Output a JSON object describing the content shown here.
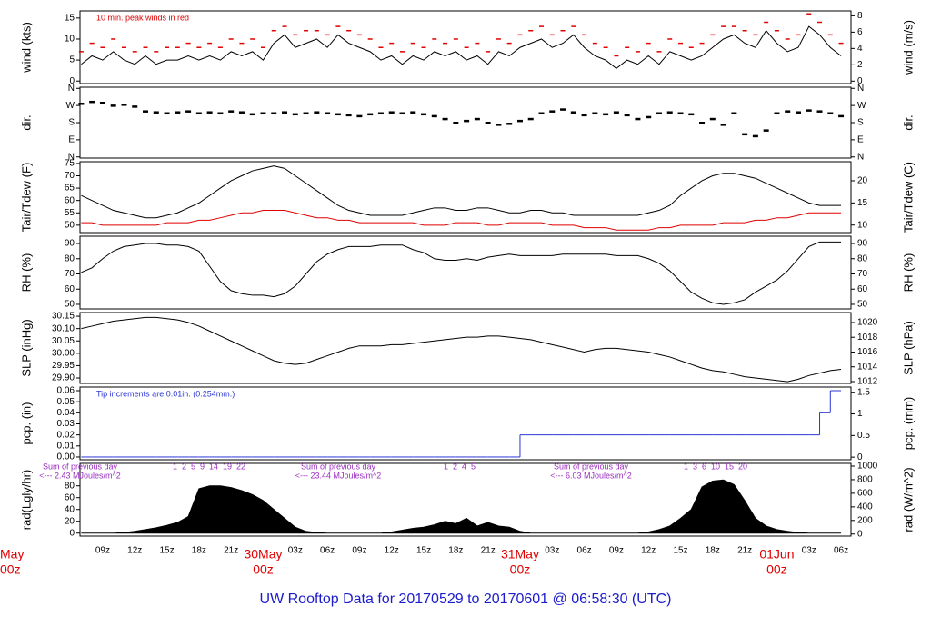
{
  "title": "UW Rooftop Data for 20170529  to  20170601 @ 06:58:30  (UTC)",
  "x_axis": {
    "categories": [
      {
        "day": "May",
        "hour": "00z"
      },
      null,
      null,
      null,
      null,
      null,
      null,
      null,
      null,
      "09z",
      null,
      null,
      "12z",
      null,
      null,
      "15z",
      null,
      null,
      "18z",
      null,
      null,
      "21z",
      null,
      null,
      {
        "day": "30May",
        "hour": "00z"
      },
      null,
      null,
      "03z",
      null,
      null,
      "06z",
      null,
      null,
      "09z",
      null,
      null,
      "12z",
      null,
      null,
      "15z",
      null,
      null,
      "18z",
      null,
      null,
      "21z",
      null,
      null,
      {
        "day": "31May",
        "hour": "00z"
      },
      null,
      null,
      "03z",
      null,
      null,
      "06z",
      null,
      null,
      "09z",
      null,
      null,
      "12z",
      null,
      null,
      "15z",
      null,
      null,
      "18z",
      null,
      null,
      "21z",
      null,
      null,
      {
        "day": "01Jun",
        "hour": "00z"
      },
      null,
      null,
      "03z",
      null,
      null,
      "06z"
    ]
  },
  "chart_data": [
    {
      "type": "line",
      "ylabel": "wind (kts)",
      "y2label": "wind (m/s)",
      "ylim": [
        -0.6,
        16.7
      ],
      "yticks": [
        0,
        5,
        10,
        15
      ],
      "y2lim": [
        -0.3,
        8.6
      ],
      "y2ticks": [
        0,
        2,
        4,
        6,
        8
      ],
      "annotation": "10 min. peak winds in red",
      "series": [
        {
          "name": "wind",
          "color": "#000000",
          "values": [
            null,
            null,
            null,
            null,
            null,
            null,
            null,
            4,
            6,
            5,
            7,
            5,
            4,
            6,
            4,
            5,
            5,
            6,
            5,
            6,
            5,
            7,
            6,
            7,
            5,
            9,
            11,
            8,
            9,
            10,
            8,
            11,
            9,
            8,
            7,
            5,
            6,
            4,
            6,
            5,
            7,
            6,
            7,
            5,
            6,
            4,
            7,
            6,
            8,
            9,
            10,
            8,
            9,
            11,
            8,
            6,
            5,
            3,
            5,
            4,
            6,
            4,
            7,
            6,
            5,
            6,
            8,
            10,
            11,
            9,
            8,
            12,
            9,
            7,
            8,
            13,
            11,
            8,
            6
          ]
        },
        {
          "name": "peak",
          "color": "#e00000",
          "marker": "dash",
          "values": [
            null,
            null,
            null,
            null,
            null,
            null,
            null,
            7,
            9,
            8,
            10,
            8,
            7,
            8,
            7,
            8,
            8,
            9,
            8,
            9,
            8,
            10,
            9,
            10,
            8,
            12,
            13,
            11,
            12,
            12,
            11,
            13,
            12,
            11,
            10,
            8,
            9,
            7,
            9,
            8,
            10,
            9,
            10,
            8,
            9,
            7,
            10,
            9,
            11,
            12,
            13,
            11,
            12,
            13,
            11,
            9,
            8,
            6,
            8,
            7,
            9,
            7,
            10,
            9,
            8,
            9,
            11,
            13,
            13,
            12,
            11,
            14,
            12,
            10,
            11,
            16,
            14,
            11,
            9
          ]
        }
      ]
    },
    {
      "type": "scatter",
      "ylabel": "dir.",
      "y2label": "dir.",
      "ylim": [
        -6,
        366
      ],
      "yticks": [
        {
          "value": 360,
          "label": "N"
        },
        {
          "value": 270,
          "label": "W"
        },
        {
          "value": 180,
          "label": "S"
        },
        {
          "value": 90,
          "label": "E"
        },
        {
          "value": 0,
          "label": "N"
        }
      ],
      "y2lim": [
        -6,
        366
      ],
      "y2ticks": [
        {
          "value": 360,
          "label": "N"
        },
        {
          "value": 270,
          "label": "W"
        },
        {
          "value": 180,
          "label": "S"
        },
        {
          "value": 90,
          "label": "E"
        },
        {
          "value": 0,
          "label": "N"
        }
      ],
      "series": [
        {
          "name": "dir",
          "color": "#000000",
          "values": [
            null,
            null,
            null,
            null,
            null,
            null,
            null,
            280,
            290,
            285,
            270,
            275,
            265,
            240,
            235,
            230,
            235,
            240,
            230,
            235,
            230,
            240,
            235,
            225,
            230,
            230,
            235,
            225,
            230,
            235,
            230,
            225,
            220,
            215,
            225,
            230,
            235,
            230,
            235,
            225,
            215,
            200,
            180,
            190,
            200,
            180,
            170,
            175,
            190,
            200,
            230,
            240,
            250,
            235,
            220,
            230,
            225,
            235,
            220,
            200,
            210,
            230,
            235,
            230,
            225,
            180,
            200,
            170,
            230,
            120,
            110,
            140,
            230,
            240,
            235,
            245,
            240,
            230,
            215
          ]
        }
      ]
    },
    {
      "type": "line",
      "ylabel": "Tair/Tdew (F)",
      "y2label": "Tair/Tdew (C)",
      "ylim": [
        47,
        75.7
      ],
      "yticks": [
        50,
        55,
        60,
        65,
        70,
        75
      ],
      "y2lim": [
        8.3,
        24.3
      ],
      "y2ticks": [
        10,
        15,
        20
      ],
      "series": [
        {
          "name": "Tair",
          "color": "#000000",
          "values": [
            null,
            null,
            null,
            null,
            null,
            null,
            null,
            62,
            60,
            58,
            56,
            55,
            54,
            53,
            53,
            54,
            55,
            57,
            59,
            62,
            65,
            68,
            70,
            72,
            73,
            74,
            73,
            70,
            67,
            64,
            61,
            58,
            56,
            55,
            54,
            54,
            54,
            54,
            55,
            56,
            57,
            57,
            56,
            56,
            57,
            57,
            56,
            55,
            55,
            56,
            56,
            55,
            55,
            54,
            54,
            54,
            54,
            54,
            54,
            54,
            55,
            56,
            58,
            62,
            65,
            68,
            70,
            71,
            71,
            70,
            69,
            67,
            65,
            63,
            61,
            59,
            58,
            58,
            58
          ]
        },
        {
          "name": "Tdew",
          "color": "#e00000",
          "values": [
            null,
            null,
            null,
            null,
            null,
            null,
            null,
            51,
            51,
            50,
            50,
            50,
            50,
            50,
            50,
            51,
            51,
            51,
            52,
            52,
            53,
            54,
            55,
            55,
            56,
            56,
            56,
            55,
            54,
            53,
            53,
            52,
            52,
            51,
            51,
            51,
            51,
            51,
            51,
            50,
            50,
            50,
            51,
            51,
            51,
            50,
            50,
            51,
            51,
            51,
            51,
            50,
            50,
            50,
            49,
            49,
            49,
            48,
            48,
            48,
            48,
            49,
            49,
            50,
            50,
            50,
            50,
            51,
            51,
            51,
            52,
            52,
            53,
            53,
            54,
            55,
            55,
            55,
            55
          ]
        }
      ]
    },
    {
      "type": "line",
      "ylabel": "RH (%)",
      "y2label": "RH (%)",
      "ylim": [
        47,
        94.8
      ],
      "yticks": [
        50,
        60,
        70,
        80,
        90
      ],
      "y2lim": [
        47,
        94.8
      ],
      "y2ticks": [
        50,
        60,
        70,
        80,
        90
      ],
      "series": [
        {
          "name": "RH",
          "color": "#000000",
          "values": [
            null,
            null,
            null,
            null,
            null,
            null,
            null,
            71,
            74,
            80,
            85,
            88,
            89,
            90,
            90,
            89,
            89,
            88,
            85,
            75,
            65,
            59,
            57,
            56,
            56,
            55,
            57,
            62,
            70,
            78,
            83,
            86,
            88,
            88,
            88,
            89,
            89,
            89,
            86,
            84,
            80,
            79,
            79,
            80,
            79,
            81,
            82,
            83,
            82,
            82,
            82,
            82,
            83,
            83,
            83,
            83,
            83,
            82,
            82,
            82,
            80,
            77,
            72,
            65,
            58,
            54,
            51,
            50,
            51,
            53,
            58,
            62,
            66,
            72,
            80,
            88,
            91,
            91,
            91
          ]
        }
      ]
    },
    {
      "type": "line",
      "ylabel": "SLP (inHg)",
      "y2label": "SLP (hPa)",
      "ylim": [
        29.878,
        30.165
      ],
      "yticks": [
        {
          "value": 29.9,
          "label": "29.90"
        },
        29.95,
        {
          "value": 30,
          "label": "30.00"
        },
        30.05,
        {
          "value": 30.1,
          "label": "30.10"
        },
        30.15
      ],
      "y2lim": [
        1011.75,
        1021.35
      ],
      "y2ticks": [
        1012,
        1014,
        1016,
        1018,
        1020
      ],
      "series": [
        {
          "name": "SLP",
          "color": "#000000",
          "values": [
            null,
            null,
            null,
            null,
            null,
            null,
            null,
            30.1,
            30.11,
            30.12,
            30.13,
            30.135,
            30.14,
            30.145,
            30.145,
            30.14,
            30.135,
            30.125,
            30.11,
            30.09,
            30.07,
            30.05,
            30.03,
            30.01,
            29.99,
            29.97,
            29.96,
            29.955,
            29.96,
            29.975,
            29.99,
            30.005,
            30.02,
            30.03,
            30.03,
            30.03,
            30.035,
            30.035,
            30.04,
            30.045,
            30.05,
            30.055,
            30.06,
            30.065,
            30.065,
            30.07,
            30.07,
            30.065,
            30.06,
            30.055,
            30.045,
            30.035,
            30.025,
            30.015,
            30.005,
            30.015,
            30.02,
            30.02,
            30.015,
            30.01,
            30.005,
            29.995,
            29.985,
            29.97,
            29.955,
            29.94,
            29.93,
            29.925,
            29.915,
            29.905,
            29.9,
            29.895,
            29.89,
            29.885,
            29.895,
            29.91,
            29.92,
            29.93,
            29.935
          ]
        }
      ]
    },
    {
      "type": "step",
      "ylabel": "pcp. (in)",
      "y2label": "pcp. (mm)",
      "ylim": [
        -0.0025,
        0.0633
      ],
      "yticks": [
        {
          "value": 0,
          "label": "0.00"
        },
        0.01,
        0.02,
        0.03,
        0.04,
        0.05,
        0.06
      ],
      "y2lim": [
        -0.06,
        1.62
      ],
      "y2ticks": [
        0,
        0.5,
        1,
        1.5
      ],
      "annotation": "Tip increments are 0.01in. (0.254mm.)",
      "series": [
        {
          "name": "pcp",
          "color": "#2a35d6",
          "values": [
            null,
            null,
            null,
            null,
            null,
            null,
            null,
            0,
            0,
            0,
            0,
            0,
            0,
            0,
            0,
            0,
            0,
            0,
            0,
            0,
            0,
            0,
            0,
            0,
            0,
            0,
            0,
            0,
            0,
            0,
            0,
            0,
            0,
            0,
            0,
            0,
            0,
            0,
            0,
            0,
            0,
            0,
            0,
            0,
            0,
            0,
            0,
            0,
            0,
            0.02,
            0.02,
            0.02,
            0.02,
            0.02,
            0.02,
            0.02,
            0.02,
            0.02,
            0.02,
            0.02,
            0.02,
            0.02,
            0.02,
            0.02,
            0.02,
            0.02,
            0.02,
            0.02,
            0.02,
            0.02,
            0.02,
            0.02,
            0.02,
            0.02,
            0.02,
            0.02,
            0.02,
            0.04,
            0.06
          ]
        }
      ]
    },
    {
      "type": "area",
      "ylabel": "rad(Lgly/hr)",
      "y2label": "rad (W/m^2)",
      "ylim": [
        -5,
        118
      ],
      "yticks": [
        0,
        20,
        40,
        60,
        80
      ],
      "y2lim": [
        -30,
        1040
      ],
      "y2ticks": [
        0,
        200,
        400,
        600,
        800,
        1000
      ],
      "notes": [
        [
          "Sum of previous day",
          "<--- 2.43 MJoules/m^2"
        ],
        [
          "Sum of previous day",
          "<--- 23.44 MJoules/m^2"
        ],
        [
          "Sum of previous day",
          "<--- 6.03 MJoules/m^2"
        ]
      ],
      "hour_marks": [
        "1  2  5  9  14  19  22",
        "1  2  4  5",
        "1  3  6  10  15  20"
      ],
      "series": [
        {
          "name": "rad",
          "color": "#000000",
          "values": [
            null,
            null,
            null,
            null,
            null,
            null,
            null,
            0,
            0,
            0,
            0,
            1,
            3,
            6,
            9,
            13,
            18,
            28,
            75,
            80,
            80,
            77,
            72,
            65,
            55,
            40,
            25,
            10,
            3,
            1,
            0,
            0,
            0,
            0,
            0,
            0,
            2,
            5,
            8,
            10,
            14,
            20,
            16,
            25,
            12,
            18,
            12,
            10,
            3,
            0,
            0,
            0,
            0,
            0,
            0,
            0,
            0,
            0,
            0,
            0,
            2,
            6,
            12,
            25,
            40,
            78,
            88,
            90,
            82,
            55,
            25,
            12,
            6,
            3,
            1,
            0,
            0,
            0,
            0
          ]
        }
      ]
    }
  ]
}
